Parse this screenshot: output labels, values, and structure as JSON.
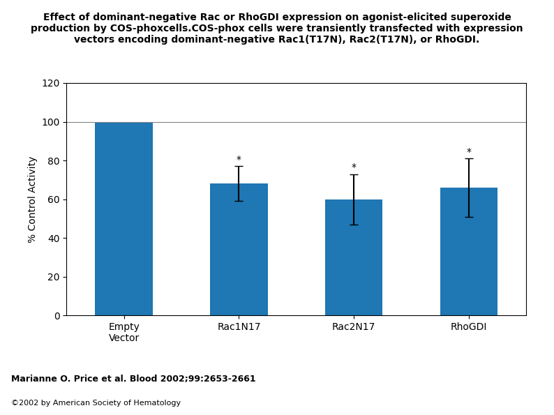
{
  "chart_data": {
    "type": "bar",
    "title": "Effect of dominant-negative Rac or RhoGDI expression on agonist-elicited superoxide\nproduction by COS-phoxcells.COS-phox cells were transiently transfected with expression\nvectors encoding dominant-negative Rac1(T17N), Rac2(T17N), or RhoGDI.",
    "categories": [
      "Empty\nVector",
      "Rac1N17",
      "Rac2N17",
      "RhoGDI"
    ],
    "values": [
      100,
      68,
      60,
      66
    ],
    "errors": [
      0,
      9,
      13,
      15
    ],
    "significance_marks": [
      null,
      "*",
      "*",
      "*"
    ],
    "reference_line": 100,
    "y_label": "% Control Activity",
    "ylim": [
      0,
      120
    ],
    "yticks": [
      0,
      20,
      40,
      60,
      80,
      100,
      120
    ],
    "annotations": [
      "Marianne O. Price et al. Blood 2002;99:2653-2661",
      "©2002 by American Society of Hematology"
    ],
    "grid": false
  }
}
